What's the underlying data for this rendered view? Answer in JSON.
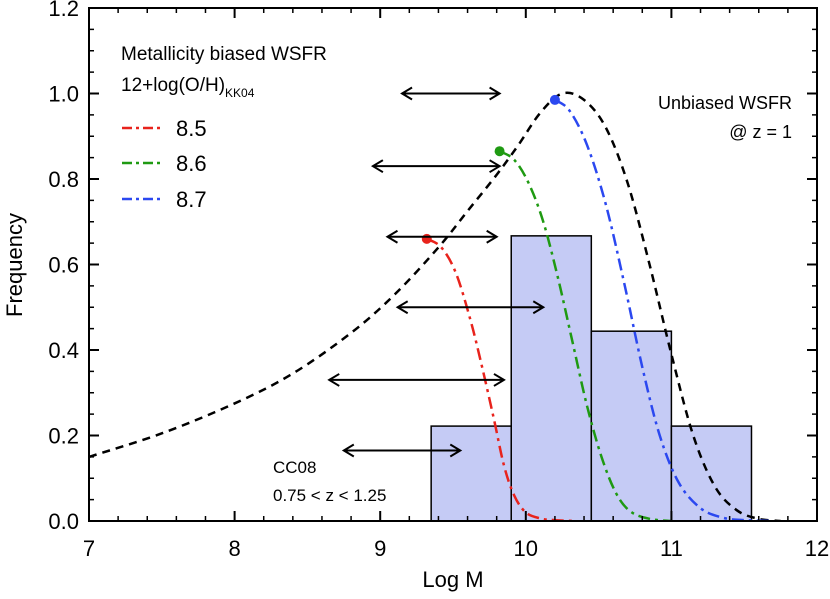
{
  "chart_data": {
    "type": "line",
    "xlabel": "Log M",
    "ylabel": "Frequency",
    "xlim": [
      7,
      12
    ],
    "ylim": [
      0,
      1.2
    ],
    "xticks": [
      7,
      8,
      9,
      10,
      11,
      12
    ],
    "yticks": [
      0.0,
      0.2,
      0.4,
      0.6,
      0.8,
      1.0,
      1.2
    ],
    "xtick_labels": [
      "7",
      "8",
      "9",
      "10",
      "11",
      "12"
    ],
    "ytick_labels": [
      "0.0",
      "0.2",
      "0.4",
      "0.6",
      "0.8",
      "1.0",
      "1.2"
    ],
    "legend": {
      "title": "Metallicity biased WSFR",
      "subtitle_main": "12+log(O/H)",
      "subtitle_sub": "KK04",
      "entries": [
        {
          "label": "8.5",
          "color": "#e8231c"
        },
        {
          "label": "8.6",
          "color": "#1f9a12"
        },
        {
          "label": "8.7",
          "color": "#2b48f0"
        }
      ]
    },
    "annotations": {
      "unbiased_line1": "Unbiased WSFR",
      "unbiased_line2": "@ z = 1",
      "hist_line1": "CC08",
      "hist_line2": "0.75 < z < 1.25"
    },
    "histogram": {
      "name": "CC08",
      "color": "#c5cbf5",
      "bins": [
        {
          "x0": 9.35,
          "x1": 9.9,
          "value": 0.222
        },
        {
          "x0": 9.9,
          "x1": 10.45,
          "value": 0.667
        },
        {
          "x0": 10.45,
          "x1": 11.0,
          "value": 0.444
        },
        {
          "x0": 11.0,
          "x1": 11.55,
          "value": 0.222
        }
      ]
    },
    "series": [
      {
        "name": "Unbiased WSFR",
        "color": "#000000",
        "dash": "8,6",
        "x": [
          7.0,
          7.5,
          8.0,
          8.4,
          8.8,
          9.1,
          9.4,
          9.6,
          9.8,
          9.95,
          10.1,
          10.25,
          10.4,
          10.55,
          10.7,
          10.85,
          11.0,
          11.15,
          11.3,
          11.45,
          11.6,
          11.75
        ],
        "y": [
          0.15,
          0.205,
          0.275,
          0.345,
          0.44,
          0.53,
          0.64,
          0.725,
          0.81,
          0.88,
          0.955,
          1.0,
          0.985,
          0.92,
          0.79,
          0.6,
          0.39,
          0.2,
          0.08,
          0.025,
          0.005,
          0.0
        ]
      },
      {
        "name": "8.5",
        "color": "#e8231c",
        "dash": "12,5,3,5",
        "x": [
          9.32,
          9.42,
          9.52,
          9.62,
          9.7,
          9.78,
          9.85,
          9.92,
          10.0,
          10.1,
          10.2,
          10.35
        ],
        "y": [
          0.66,
          0.64,
          0.58,
          0.47,
          0.36,
          0.24,
          0.13,
          0.06,
          0.02,
          0.006,
          0.002,
          0.0
        ]
      },
      {
        "name": "8.6",
        "color": "#1f9a12",
        "dash": "12,5,3,5",
        "x": [
          9.82,
          9.92,
          10.02,
          10.12,
          10.22,
          10.32,
          10.42,
          10.52,
          10.62,
          10.72,
          10.85,
          11.0
        ],
        "y": [
          0.865,
          0.845,
          0.79,
          0.7,
          0.57,
          0.42,
          0.27,
          0.15,
          0.065,
          0.022,
          0.005,
          0.0
        ]
      },
      {
        "name": "8.7",
        "color": "#2b48f0",
        "dash": "12,5,3,5",
        "x": [
          10.2,
          10.3,
          10.42,
          10.55,
          10.68,
          10.8,
          10.92,
          11.05,
          11.2,
          11.35,
          11.5,
          11.7
        ],
        "y": [
          0.985,
          0.96,
          0.88,
          0.74,
          0.55,
          0.36,
          0.2,
          0.09,
          0.03,
          0.008,
          0.002,
          0.0
        ]
      }
    ],
    "markers": [
      {
        "x": 9.32,
        "y": 0.66,
        "color": "#e8231c"
      },
      {
        "x": 9.82,
        "y": 0.865,
        "color": "#1f9a12"
      },
      {
        "x": 10.2,
        "y": 0.985,
        "color": "#2b48f0"
      }
    ],
    "arrows": [
      {
        "x1": 9.15,
        "x2": 9.82,
        "y": 1.0
      },
      {
        "x1": 8.95,
        "x2": 9.82,
        "y": 0.83
      },
      {
        "x1": 9.05,
        "x2": 9.8,
        "y": 0.665
      },
      {
        "x1": 9.12,
        "x2": 10.12,
        "y": 0.5
      },
      {
        "x1": 8.65,
        "x2": 9.85,
        "y": 0.33
      },
      {
        "x1": 8.75,
        "x2": 9.55,
        "y": 0.165
      }
    ]
  }
}
